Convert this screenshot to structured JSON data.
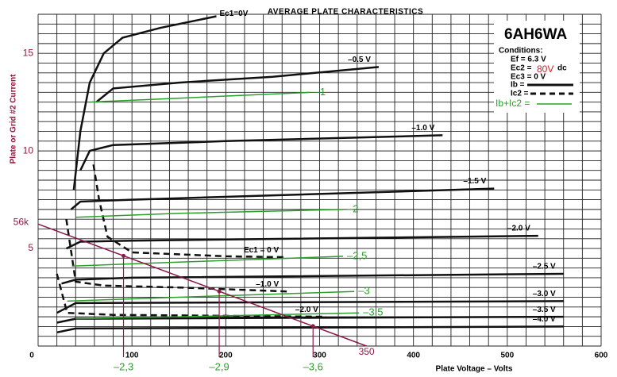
{
  "chart_data": {
    "type": "line",
    "title": "AVERAGE PLATE CHARACTERISTICS",
    "y_label": "Plate or Grid #2 Current",
    "x_label": "Plate Voltage – Volts",
    "xlim": [
      0,
      600
    ],
    "ylim": [
      0,
      17
    ],
    "xticks": [
      0,
      100,
      200,
      300,
      400,
      500,
      600
    ],
    "yticks": [
      5,
      10,
      15
    ],
    "x_grid": [
      0,
      20,
      40,
      60,
      80,
      100,
      120,
      140,
      160,
      180,
      200,
      220,
      240,
      260,
      280,
      300,
      320,
      340,
      360,
      380,
      400,
      420,
      440,
      460,
      480,
      500,
      520,
      540,
      560,
      580,
      600
    ],
    "y_grid": [
      0,
      0.5,
      1,
      1.5,
      2,
      2.5,
      3,
      3.5,
      4,
      4.5,
      5,
      5.5,
      6,
      6.5,
      7,
      7.5,
      8,
      8.5,
      9,
      9.5,
      10,
      10.5,
      11,
      11.5,
      12,
      12.5,
      13,
      13.5,
      14,
      14.5,
      15,
      15.5,
      16,
      16.5,
      17
    ],
    "series": [
      {
        "name": "Ec1=0V",
        "color": "#111111",
        "dash": false,
        "x": [
          38,
          45,
          55,
          70,
          90,
          130,
          190
        ],
        "values": [
          8,
          11,
          13.5,
          15,
          15.8,
          16.3,
          16.9
        ]
      },
      {
        "name": "–0.5 V",
        "color": "#111111",
        "dash": false,
        "x": [
          62,
          80,
          150,
          250,
          363
        ],
        "values": [
          12.5,
          13.2,
          13.5,
          13.8,
          14.3
        ]
      },
      {
        "name": "–1.0 V",
        "color": "#111111",
        "dash": false,
        "x": [
          45,
          55,
          80,
          200,
          431
        ],
        "values": [
          9,
          10,
          10.3,
          10.5,
          10.8
        ]
      },
      {
        "name": "–1.5 V",
        "color": "#111111",
        "dash": false,
        "x": [
          35,
          45,
          100,
          486
        ],
        "values": [
          7,
          7.4,
          7.5,
          8.07
        ]
      },
      {
        "name": "–2.0 V",
        "color": "#111111",
        "dash": false,
        "x": [
          30,
          45,
          100,
          533
        ],
        "values": [
          5,
          5.35,
          5.4,
          5.65
        ]
      },
      {
        "name": "–2.5 V",
        "color": "#111111",
        "dash": false,
        "x": [
          25,
          40,
          100,
          560
        ],
        "values": [
          3.2,
          3.4,
          3.5,
          3.7
        ]
      },
      {
        "name": "–3.0 V",
        "color": "#111111",
        "dash": false,
        "x": [
          20,
          40,
          560
        ],
        "values": [
          1.7,
          2.2,
          2.3
        ]
      },
      {
        "name": "–3.5 V",
        "color": "#111111",
        "dash": false,
        "x": [
          20,
          40,
          560
        ],
        "values": [
          1.2,
          1.4,
          1.5
        ]
      },
      {
        "name": "–4.0 V",
        "color": "#111111",
        "dash": false,
        "x": [
          20,
          40,
          560
        ],
        "values": [
          0.7,
          0.9,
          1.0
        ]
      },
      {
        "name": "Ec1 = 0 V",
        "color": "#111111",
        "dash": true,
        "x": [
          59,
          65,
          74,
          100,
          200,
          265
        ],
        "values": [
          9.3,
          7.5,
          5.6,
          4.8,
          4.6,
          4.55
        ]
      },
      {
        "name": "–1.0 V",
        "color": "#111111",
        "dash": true,
        "x": [
          30,
          40,
          70,
          150,
          265
        ],
        "values": [
          6.5,
          3.3,
          3.1,
          3.0,
          2.8
        ]
      },
      {
        "name": "–2.0 V",
        "color": "#111111",
        "dash": true,
        "x": [
          20,
          31,
          80,
          200,
          307
        ],
        "values": [
          3.7,
          1.7,
          1.6,
          1.55,
          1.5
        ]
      },
      {
        "name": "–1",
        "color": "#2aa02a",
        "dash": false,
        "x": [
          55,
          150,
          290
        ],
        "values": [
          12.5,
          12.7,
          13.0
        ]
      },
      {
        "name": "–2",
        "color": "#2aa02a",
        "dash": false,
        "x": [
          40,
          150,
          325
        ],
        "values": [
          6.6,
          6.8,
          7.0
        ]
      },
      {
        "name": "–2,5",
        "color": "#2aa02a",
        "dash": false,
        "x": [
          36,
          150,
          325
        ],
        "values": [
          4.1,
          4.3,
          4.6
        ]
      },
      {
        "name": "–3",
        "color": "#2aa02a",
        "dash": false,
        "x": [
          31,
          150,
          337
        ],
        "values": [
          2.3,
          2.5,
          2.8
        ]
      },
      {
        "name": "–3,5",
        "color": "#2aa02a",
        "dash": false,
        "x": [
          40,
          150,
          342
        ],
        "values": [
          1.4,
          1.5,
          1.7
        ]
      }
    ],
    "load_line": {
      "label": "56k",
      "end_label": "350",
      "color": "#8b1a4a",
      "x": [
        0,
        350
      ],
      "values": [
        6.25,
        0
      ]
    },
    "operating_points": {
      "color": "#2aa02a",
      "x": [
        91,
        193,
        293
      ],
      "values": [
        4.62,
        2.8,
        1.02
      ],
      "labels": [
        "–2,3",
        "–2,9",
        "–3,6"
      ]
    },
    "legend": {
      "tube": "6AH6WA",
      "heading": "Conditions:",
      "ef": "Ef = 6.3 V",
      "ec2": "Ec2 =",
      "ec2_value": "80V",
      "ec2_unit": "dc",
      "ec3": "Ec3 = 0 V",
      "ib": "Ib =",
      "ic2": "Ic2 =",
      "sum": "Ib+Ic2 ="
    }
  }
}
